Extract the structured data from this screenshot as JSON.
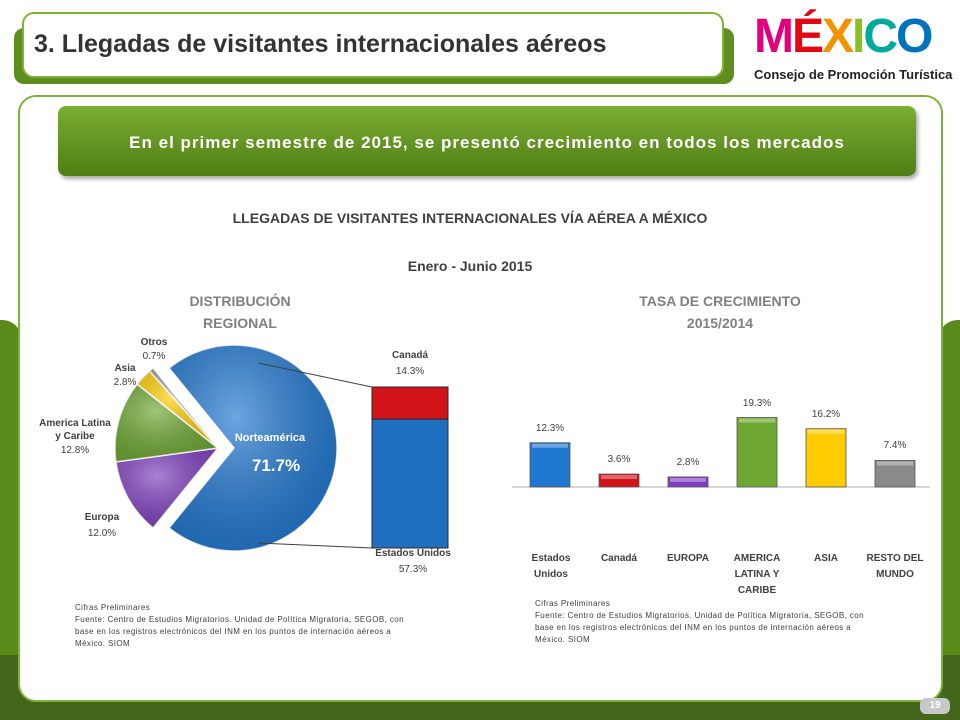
{
  "header": {
    "title": "3. Llegadas de visitantes internacionales aéreos",
    "logo": {
      "letters": [
        "M",
        "É",
        "X",
        "I",
        "C",
        "O"
      ],
      "letter_colors": [
        "#e3007a",
        "#e30613",
        "#f39200",
        "#8cbf26",
        "#00a99d",
        "#0071bc"
      ],
      "subtitle": "Consejo de Promoción Turística"
    }
  },
  "banner": {
    "text": "En el primer semestre de 2015, se presentó crecimiento en todos los mercados"
  },
  "report": {
    "title": "LLEGADAS DE VISITANTES INTERNACIONALES VÍA AÉREA A MÉXICO",
    "period": "Enero - Junio 2015"
  },
  "sources": {
    "line1": "Cifras Preliminares",
    "line2": "Fuente: Centro de Estudios Migratorios. Unidad de Política Migratoria, SEGOB, con",
    "line3": "base en los registros electrónicos del INM en los puntos de internación  aéreos a",
    "line4": "México. SIOM"
  },
  "page_number": "19",
  "chart_data": [
    {
      "type": "pie",
      "title_lines": [
        "DISTRIBUCIÓN",
        "REGIONAL"
      ],
      "slices": [
        {
          "name": "Norteamérica",
          "value": 71.7,
          "label": "71.7%",
          "color": "#1f77d0"
        },
        {
          "name": "Europa",
          "value": 12.0,
          "label": "12.0%",
          "color": "#7e3fbf"
        },
        {
          "name_lines": [
            "America Latina",
            "y Caribe"
          ],
          "name": "America Latina y Caribe",
          "value": 12.8,
          "label": "12.8%",
          "color": "#6ea832"
        },
        {
          "name": "Asia",
          "value": 2.8,
          "label": "2.8%",
          "color": "#ffcc00"
        },
        {
          "name": "Otros",
          "value": 0.7,
          "label": "0.7%",
          "color": "#a0a0a0"
        }
      ],
      "breakdown": {
        "of": "Norteamérica",
        "type": "stacked-bar",
        "segments": [
          {
            "name": "Estados Unidos",
            "value": 57.3,
            "label": "57.3%",
            "color": "#1f6fc0"
          },
          {
            "name": "Canadá",
            "value": 14.3,
            "label": "14.3%",
            "color": "#d0141a"
          }
        ]
      }
    },
    {
      "type": "bar",
      "title_lines": [
        "TASA DE CRECIMIENTO",
        "2015/2014"
      ],
      "category_lines": [
        [
          "Estados",
          "Unidos"
        ],
        [
          "Canadá"
        ],
        [
          "EUROPA"
        ],
        [
          "AMERICA",
          "LATINA Y",
          "CARIBE"
        ],
        [
          "ASIA"
        ],
        [
          "RESTO DEL",
          "MUNDO"
        ]
      ],
      "categories": [
        "Estados Unidos",
        "Canadá",
        "EUROPA",
        "AMERICA LATINA Y CARIBE",
        "ASIA",
        "RESTO DEL MUNDO"
      ],
      "values": [
        12.3,
        3.6,
        2.8,
        19.3,
        16.2,
        7.4
      ],
      "labels": [
        "12.3%",
        "3.6%",
        "2.8%",
        "19.3%",
        "16.2%",
        "7.4%"
      ],
      "colors": [
        "#1f77d0",
        "#d0141a",
        "#7e3fbf",
        "#6ea832",
        "#ffcc00",
        "#8a8a8a"
      ],
      "ylim": [
        0,
        20
      ]
    }
  ]
}
